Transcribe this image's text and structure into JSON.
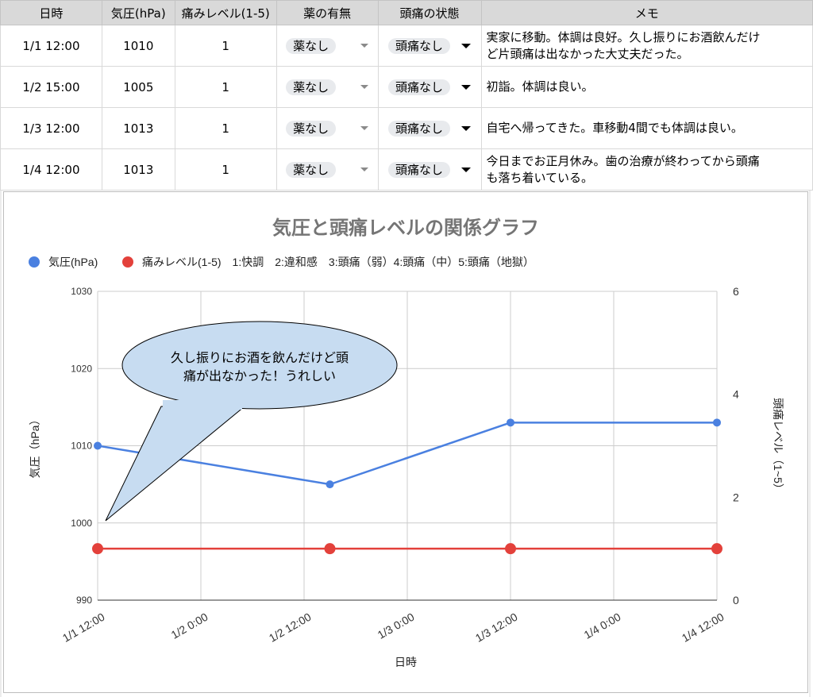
{
  "table": {
    "headers": [
      "日時",
      "気圧(hPa)",
      "痛みレベル(1-5)",
      "薬の有無",
      "頭痛の状態",
      "メモ"
    ],
    "rows": [
      {
        "datetime": "1/1 12:00",
        "pressure": "1010",
        "pain": "1",
        "medicine": "薬なし",
        "headache": "頭痛なし",
        "memo1": "実家に移動。体調は良好。久し振りにお酒飲んだけ",
        "memo2": "ど片頭痛は出なかった大丈夫だった。"
      },
      {
        "datetime": "1/2 15:00",
        "pressure": "1005",
        "pain": "1",
        "medicine": "薬なし",
        "headache": "頭痛なし",
        "memo1": "初詣。体調は良い。",
        "memo2": ""
      },
      {
        "datetime": "1/3 12:00",
        "pressure": "1013",
        "pain": "1",
        "medicine": "薬なし",
        "headache": "頭痛なし",
        "memo1": "自宅へ帰ってきた。車移動4間でも体調は良い。",
        "memo2": ""
      },
      {
        "datetime": "1/4 12:00",
        "pressure": "1013",
        "pain": "1",
        "medicine": "薬なし",
        "headache": "頭痛なし",
        "memo1": "今日までお正月休み。歯の治療が終わってから頭痛",
        "memo2": "も落ち着いている。"
      }
    ]
  },
  "chart_data": {
    "type": "line",
    "title": "気圧と頭痛レベルの関係グラフ",
    "xlabel": "日時",
    "ylabel_left": "気圧（hPa）",
    "ylabel_right": "頭痛レベル（1~5）",
    "legend_position": "top-left",
    "legend_note": "1:快調　2:違和感　3:頭痛（弱）4:頭痛（中）5:頭痛（地獄）",
    "x_ticks": [
      "1/1 12:00",
      "1/2 0:00",
      "1/2 12:00",
      "1/3 0:00",
      "1/3 12:00",
      "1/4 0:00",
      "1/4 12:00"
    ],
    "y_left": {
      "min": 990,
      "max": 1030,
      "ticks": [
        "990",
        "1000",
        "1010",
        "1020",
        "1030"
      ]
    },
    "y_right": {
      "min": 0,
      "max": 6,
      "ticks": [
        "0",
        "2",
        "4",
        "6"
      ]
    },
    "grid": true,
    "series": [
      {
        "name": "気圧(hPa)",
        "axis": "left",
        "color": "#4a80e0",
        "x": [
          "1/1 12:00",
          "1/2 15:00",
          "1/3 12:00",
          "1/4 12:00"
        ],
        "values": [
          1010,
          1005,
          1013,
          1013
        ]
      },
      {
        "name": "痛みレベル(1-5)",
        "axis": "right",
        "color": "#e3413b",
        "x": [
          "1/1 12:00",
          "1/2 15:00",
          "1/3 12:00",
          "1/4 12:00"
        ],
        "values": [
          1,
          1,
          1,
          1
        ]
      }
    ],
    "annotation": {
      "line1": "久し振りにお酒を飲んだけど頭",
      "line2": "痛が出なかった！うれしい"
    }
  }
}
